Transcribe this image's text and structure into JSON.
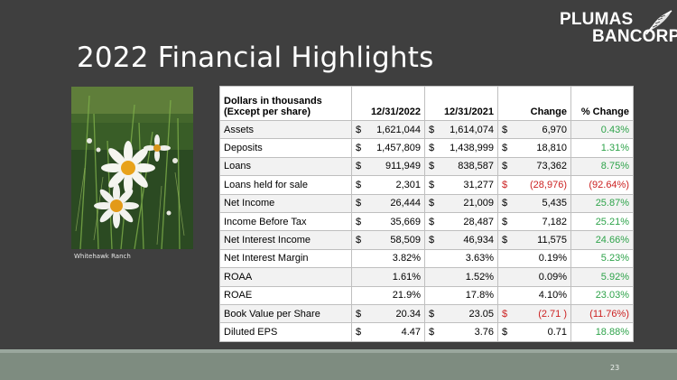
{
  "slide": {
    "title": "2022 Financial Highlights",
    "page_number": "23"
  },
  "logo": {
    "line1": "PLUMAS",
    "line2": "BANCORP"
  },
  "photo": {
    "caption": "Whitehawk Ranch"
  },
  "table": {
    "header": {
      "label_line1": "Dollars in thousands",
      "label_line2": "(Except per share)",
      "col1": "12/31/2022",
      "col2": "12/31/2021",
      "col3": "Change",
      "col4": "% Change"
    },
    "rows": [
      {
        "label": "Assets",
        "d1": "$",
        "v1": "1,621,044",
        "d2": "$",
        "v2": "1,614,074",
        "d3": "$",
        "v3": "6,970",
        "pct": "0.43%",
        "sign": "pos"
      },
      {
        "label": "Deposits",
        "d1": "$",
        "v1": "1,457,809",
        "d2": "$",
        "v2": "1,438,999",
        "d3": "$",
        "v3": "18,810",
        "pct": "1.31%",
        "sign": "pos"
      },
      {
        "label": "Loans",
        "d1": "$",
        "v1": "911,949",
        "d2": "$",
        "v2": "838,587",
        "d3": "$",
        "v3": "73,362",
        "pct": "8.75%",
        "sign": "pos"
      },
      {
        "label": "Loans held for sale",
        "d1": "$",
        "v1": "2,301",
        "d2": "$",
        "v2": "31,277",
        "d3": "$",
        "v3": "(28,976)",
        "pct": "(92.64%)",
        "sign": "neg"
      },
      {
        "label": "Net Income",
        "d1": "$",
        "v1": "26,444",
        "d2": "$",
        "v2": "21,009",
        "d3": "$",
        "v3": "5,435",
        "pct": "25.87%",
        "sign": "pos"
      },
      {
        "label": "Income Before Tax",
        "d1": "$",
        "v1": "35,669",
        "d2": "$",
        "v2": "28,487",
        "d3": "$",
        "v3": "7,182",
        "pct": "25.21%",
        "sign": "pos"
      },
      {
        "label": "Net Interest Income",
        "d1": "$",
        "v1": "58,509",
        "d2": "$",
        "v2": "46,934",
        "d3": "$",
        "v3": "11,575",
        "pct": "24.66%",
        "sign": "pos"
      },
      {
        "label": "Net Interest Margin",
        "d1": "",
        "v1": "3.82%",
        "d2": "",
        "v2": "3.63%",
        "d3": "",
        "v3": "0.19%",
        "pct": "5.23%",
        "sign": "pos"
      },
      {
        "label": "ROAA",
        "d1": "",
        "v1": "1.61%",
        "d2": "",
        "v2": "1.52%",
        "d3": "",
        "v3": "0.09%",
        "pct": "5.92%",
        "sign": "pos"
      },
      {
        "label": "ROAE",
        "d1": "",
        "v1": "21.9%",
        "d2": "",
        "v2": "17.8%",
        "d3": "",
        "v3": "4.10%",
        "pct": "23.03%",
        "sign": "pos"
      },
      {
        "label": "Book Value per Share",
        "d1": "$",
        "v1": "20.34",
        "d2": "$",
        "v2": "23.05",
        "d3": "$",
        "v3": "(2.71 )",
        "pct": "(11.76%)",
        "sign": "neg"
      },
      {
        "label": "Diluted EPS",
        "d1": "$",
        "v1": "4.47",
        "d2": "$",
        "v2": "3.76",
        "d3": "$",
        "v3": "0.71",
        "pct": "18.88%",
        "sign": "pos"
      }
    ]
  },
  "colors": {
    "positive": "#2ea34a",
    "negative": "#cc2222",
    "background": "#3f3f3f",
    "footer": "#7e8c80"
  },
  "icons": [
    "feather-logo-icon"
  ]
}
